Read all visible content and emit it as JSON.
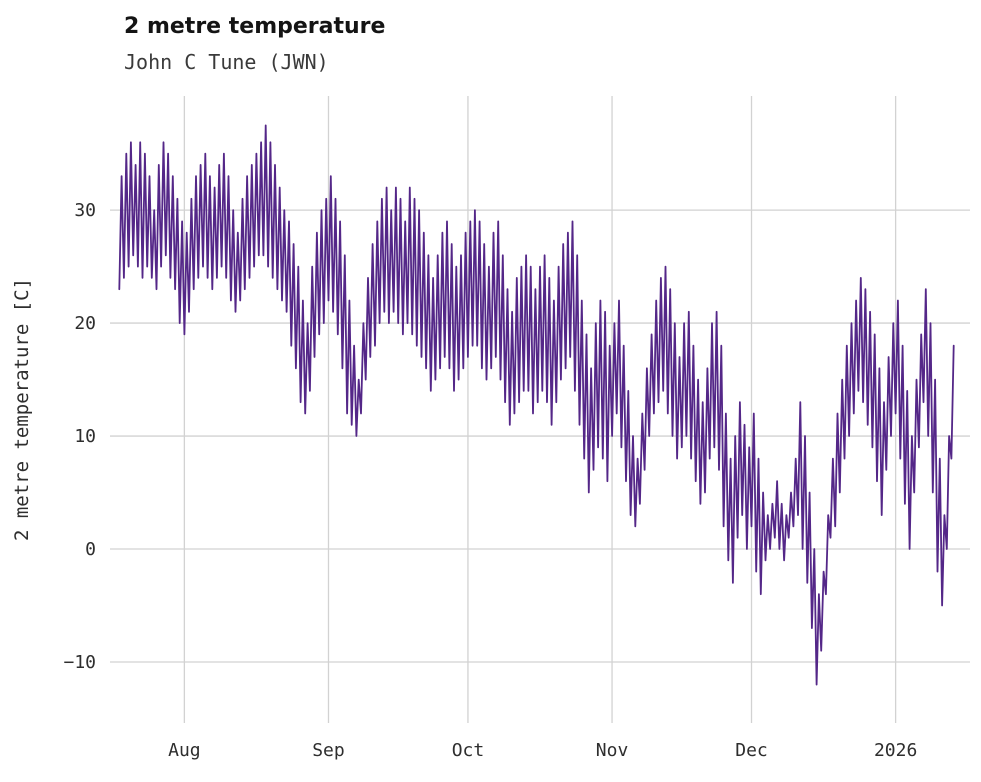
{
  "header": {
    "title": "2 metre temperature",
    "subtitle": "John C Tune (JWN)"
  },
  "chart_data": {
    "type": "line",
    "title": "2 metre temperature",
    "subtitle": "John C Tune (JWN)",
    "xlabel": "",
    "ylabel": "2 metre temperature [C]",
    "legend": "none",
    "grid": "on",
    "line_color": "#542788",
    "grid_color": "#d2d2d2",
    "text_color": "#2e2e2e",
    "y_ticks": [
      -10,
      0,
      10,
      20,
      30
    ],
    "y_domain": [
      -15.4,
      40.1
    ],
    "x_ticks": [
      {
        "label": "Aug",
        "day": 14
      },
      {
        "label": "Sep",
        "day": 45
      },
      {
        "label": "Oct",
        "day": 75
      },
      {
        "label": "Nov",
        "day": 106
      },
      {
        "label": "Dec",
        "day": 136
      },
      {
        "label": "2026",
        "day": 167
      }
    ],
    "x_domain": [
      -2,
      183
    ],
    "x_start_day": 0,
    "sample_step_days": 0.5,
    "values_note": "estimated twice-daily (night-low / day-high) temperatures in C read from the plotted hourly series",
    "values": [
      23,
      33,
      24,
      35,
      25,
      36,
      26,
      34,
      25,
      36,
      24,
      35,
      25,
      33,
      24,
      30,
      23,
      34,
      25,
      36,
      26,
      35,
      24,
      33,
      23,
      31,
      20,
      29,
      19,
      28,
      21,
      31,
      23,
      33,
      24,
      34,
      25,
      35,
      24,
      33,
      23,
      32,
      24,
      34,
      25,
      35,
      24,
      33,
      22,
      30,
      21,
      28,
      22,
      31,
      23,
      33,
      24,
      34,
      25,
      35,
      26,
      36,
      26,
      37.5,
      25,
      36,
      24,
      34,
      23,
      32,
      22,
      30,
      21,
      29,
      18,
      27,
      16,
      25,
      13,
      22,
      12,
      20,
      14,
      25,
      17,
      28,
      19,
      30,
      20,
      31,
      22,
      33,
      21,
      31,
      19,
      29,
      16,
      26,
      12,
      22,
      11,
      18,
      10,
      15,
      12,
      20,
      15,
      24,
      17,
      27,
      18,
      29,
      20,
      31,
      21,
      32,
      20,
      30,
      21,
      32,
      20,
      31,
      19,
      29,
      20,
      32,
      19,
      31,
      18,
      30,
      17,
      28,
      16,
      26,
      14,
      24,
      15,
      26,
      16,
      28,
      17,
      29,
      16,
      27,
      14,
      25,
      15,
      26,
      16,
      28,
      17,
      29,
      18,
      30,
      18,
      29,
      16,
      27,
      15,
      25,
      16,
      28,
      17,
      29,
      15,
      26,
      13,
      23,
      11,
      21,
      12,
      24,
      13,
      25,
      14,
      26,
      14,
      25,
      12,
      23,
      13,
      25,
      14,
      26,
      13,
      24,
      11,
      22,
      13,
      25,
      15,
      27,
      16,
      28,
      17,
      29,
      14,
      26,
      11,
      22,
      8,
      19,
      5,
      16,
      7,
      20,
      9,
      22,
      8,
      21,
      6,
      18,
      10,
      20,
      12,
      22,
      9,
      18,
      6,
      14,
      3,
      10,
      2,
      8,
      4,
      12,
      7,
      16,
      10,
      19,
      12,
      22,
      13,
      24,
      14,
      25,
      12,
      23,
      10,
      20,
      8,
      17,
      9,
      20,
      10,
      21,
      8,
      18,
      6,
      15,
      4,
      13,
      5,
      16,
      8,
      20,
      9,
      21,
      7,
      18,
      2,
      12,
      -1,
      8,
      -3,
      10,
      1,
      13,
      3,
      11,
      0,
      9,
      2,
      12,
      -2,
      8,
      -4,
      5,
      -1,
      3,
      0,
      4,
      1,
      6,
      0,
      4,
      -1,
      3,
      1,
      5,
      2,
      8,
      3,
      13,
      0,
      10,
      -3,
      5,
      -7,
      0,
      -12,
      -4,
      -9,
      -2,
      -4,
      3,
      1,
      8,
      2,
      12,
      5,
      15,
      8,
      18,
      10,
      20,
      12,
      22,
      14,
      24,
      13,
      23,
      11,
      21,
      9,
      19,
      6,
      16,
      3,
      13,
      7,
      17,
      10,
      20,
      12,
      22,
      8,
      18,
      4,
      14,
      0,
      10,
      5,
      15,
      9,
      19,
      13,
      23,
      10,
      20,
      5,
      15,
      -2,
      8,
      -5,
      3,
      0,
      10,
      8,
      18
    ]
  }
}
